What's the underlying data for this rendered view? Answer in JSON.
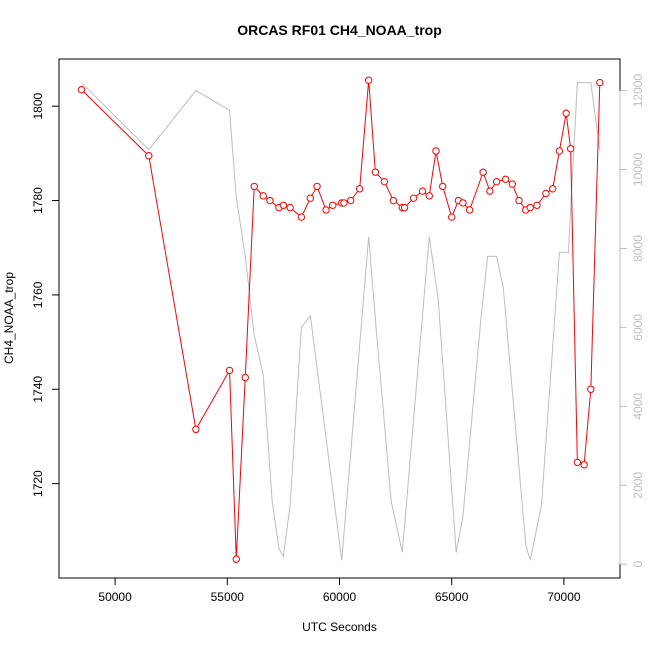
{
  "chart_data": {
    "type": "line",
    "title": "ORCAS RF01 CH4_NOAA_trop",
    "xlabel": "UTC Seconds",
    "ylabel": "CH4_NOAA_trop",
    "xlim": [
      47500,
      72500
    ],
    "ylim": [
      1700,
      1810
    ],
    "y2lim": [
      -350,
      12800
    ],
    "x_ticks": [
      50000,
      55000,
      60000,
      65000,
      70000
    ],
    "y_ticks": [
      1720,
      1740,
      1760,
      1780,
      1800
    ],
    "y2_ticks": [
      0,
      2000,
      4000,
      6000,
      8000,
      10000,
      12000
    ],
    "grid": false,
    "colors": {
      "ch4": "#ff0000",
      "altitude": "#bebebe",
      "axis": "#000000",
      "right_axis": "#bebebe"
    },
    "series": [
      {
        "axis": "left",
        "style": "line-with-open-circles",
        "x": [
          48500,
          51500,
          53600,
          55100,
          55400,
          55800,
          56200,
          56600,
          56900,
          57300,
          57500,
          57800,
          58300,
          58700,
          59000,
          59400,
          59700,
          60100,
          60200,
          60500,
          60900,
          61300,
          61600,
          62000,
          62400,
          62800,
          62900,
          63300,
          63700,
          64000,
          64300,
          64600,
          65000,
          65300,
          65500,
          65800,
          66400,
          66700,
          67000,
          67400,
          67700,
          68000,
          68300,
          68500,
          68800,
          69200,
          69500,
          69800,
          70100,
          70300,
          70600,
          70900,
          71200,
          71600
        ],
        "y": [
          1803.5,
          1789.5,
          1731.5,
          1744.0,
          1704.0,
          1742.5,
          1783.0,
          1781.0,
          1780.0,
          1778.5,
          1779.0,
          1778.5,
          1776.5,
          1780.5,
          1783.0,
          1778.0,
          1779.0,
          1779.5,
          1779.5,
          1780.0,
          1782.5,
          1805.5,
          1786.0,
          1784.0,
          1780.0,
          1778.5,
          1778.5,
          1780.5,
          1782.0,
          1781.0,
          1790.5,
          1783.0,
          1776.5,
          1780.0,
          1779.5,
          1778.0,
          1786.0,
          1782.0,
          1784.0,
          1784.5,
          1783.5,
          1780.0,
          1778.0,
          1778.5,
          1779.0,
          1781.5,
          1782.5,
          1790.5,
          1798.5,
          1791.0,
          1724.5,
          1724.0,
          1740.0,
          1805.0
        ]
      },
      {
        "axis": "right",
        "style": "line",
        "x": [
          48500,
          51500,
          53600,
          55100,
          55400,
          55800,
          56200,
          56600,
          57000,
          57300,
          57500,
          57800,
          58300,
          58700,
          60100,
          61300,
          61600,
          62300,
          62800,
          63200,
          64000,
          64400,
          65200,
          65500,
          66300,
          66600,
          67000,
          67300,
          68300,
          68500,
          69000,
          69800,
          70200,
          70600,
          71200,
          71600
        ],
        "y": [
          12200,
          10500,
          12000,
          11500,
          9300,
          7800,
          5800,
          4800,
          1600,
          400,
          200,
          1500,
          6000,
          6300,
          100,
          8300,
          6200,
          1600,
          300,
          3000,
          8300,
          6700,
          300,
          1200,
          6200,
          7800,
          7800,
          7000,
          500,
          100,
          1500,
          7900,
          7900,
          12200,
          12200,
          10500
        ]
      }
    ]
  }
}
